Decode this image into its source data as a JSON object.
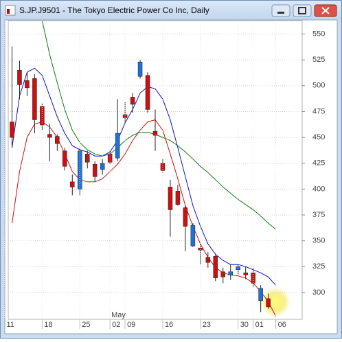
{
  "window": {
    "title": "S.JP.J9501 - The Tokyo Electric Power Co Inc, Daily"
  },
  "chart_data": {
    "type": "candlestick",
    "categories": [
      "11",
      null,
      null,
      null,
      null,
      "18",
      null,
      null,
      null,
      null,
      "25",
      null,
      null,
      null,
      "02",
      null,
      "09",
      null,
      null,
      null,
      null,
      "16",
      null,
      null,
      null,
      null,
      "23",
      null,
      null,
      null,
      null,
      "30",
      null,
      "01",
      null,
      null,
      "06",
      null,
      null
    ],
    "months": [
      null,
      null,
      null,
      null,
      null,
      null,
      null,
      null,
      null,
      null,
      null,
      null,
      null,
      null,
      "May",
      null,
      null,
      null,
      null,
      null,
      null,
      null,
      null,
      null,
      null,
      null,
      null,
      null,
      null,
      null,
      null,
      null,
      null,
      null,
      null,
      null,
      null,
      null,
      null
    ],
    "open": [
      465,
      515,
      505,
      507,
      480,
      453,
      451,
      437,
      407,
      400,
      434,
      424,
      419,
      434,
      430,
      472,
      489,
      509,
      510,
      456,
      425,
      402,
      398,
      382,
      345,
      343,
      334,
      335,
      320,
      317,
      322,
      319,
      319,
      292,
      294,
      null,
      null,
      null,
      null
    ],
    "high": [
      538,
      524,
      513,
      511,
      483,
      463,
      453,
      440,
      414,
      440,
      437,
      427,
      429,
      437,
      487,
      484,
      493,
      525,
      513,
      477,
      429,
      409,
      404,
      384,
      367,
      347,
      339,
      337,
      324,
      327,
      327,
      325,
      324,
      307,
      299,
      null,
      null,
      null,
      null
    ],
    "low": [
      440,
      487,
      490,
      454,
      457,
      427,
      437,
      418,
      394,
      394,
      420,
      407,
      414,
      424,
      427,
      464,
      474,
      507,
      474,
      437,
      416,
      354,
      384,
      340,
      344,
      327,
      324,
      311,
      309,
      312,
      317,
      313,
      305,
      281,
      284,
      null,
      null,
      null,
      null
    ],
    "close": [
      450,
      501,
      498,
      467,
      462,
      450,
      444,
      422,
      402,
      437,
      426,
      412,
      425,
      426,
      454,
      469,
      482,
      523,
      477,
      452,
      418,
      380,
      385,
      364,
      365,
      341,
      329,
      314,
      315,
      320,
      325,
      317,
      309,
      304,
      286,
      null,
      null,
      null,
      null
    ],
    "up_color": "#1f6fd6",
    "down_color": "#cc1010",
    "series": [
      {
        "color": "#1010c8",
        "values": [
          440,
          490,
          513,
          517,
          510,
          490,
          470,
          454,
          442,
          438,
          436,
          432,
          432,
          436,
          447,
          464,
          477,
          493,
          499,
          497,
          487,
          467,
          440,
          412,
          384,
          364,
          347,
          337,
          331,
          327,
          327,
          325,
          322,
          319,
          315,
          307,
          null,
          null,
          null
        ]
      },
      {
        "color": "#d01010",
        "values": [
          367,
          417,
          450,
          463,
          465,
          460,
          450,
          434,
          417,
          409,
          407,
          407,
          410,
          417,
          424,
          434,
          447,
          457,
          465,
          467,
          457,
          434,
          410,
          384,
          364,
          347,
          334,
          324,
          319,
          317,
          316,
          314,
          309,
          301,
          291,
          277,
          null,
          null,
          null
        ]
      },
      {
        "color": "#0a7a0a",
        "values": [
          null,
          null,
          null,
          null,
          563,
          530,
          503,
          477,
          457,
          445,
          438,
          434,
          432,
          434,
          440,
          447,
          452,
          455,
          455,
          453,
          450,
          447,
          442,
          436,
          429,
          422,
          416,
          409,
          402,
          396,
          390,
          385,
          380,
          374,
          367,
          361,
          null,
          null,
          null
        ]
      }
    ],
    "ylim": [
      274,
      563
    ],
    "yticks": [
      300,
      325,
      350,
      375,
      400,
      425,
      450,
      475,
      500,
      525,
      550
    ],
    "grid": true
  }
}
